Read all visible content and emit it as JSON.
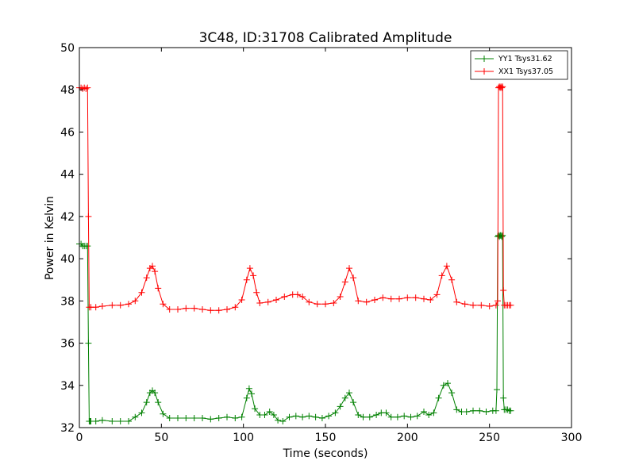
{
  "chart_data": {
    "type": "line",
    "title": "3C48, ID:31708 Calibrated Amplitude",
    "xlabel": "Time (seconds)",
    "ylabel": "Power in Kelvin",
    "xlim": [
      0,
      300
    ],
    "ylim": [
      32,
      50
    ],
    "xticks": [
      0,
      50,
      100,
      150,
      200,
      250,
      300
    ],
    "yticks": [
      32,
      34,
      36,
      38,
      40,
      42,
      44,
      46,
      48,
      50
    ],
    "xtick_labels": [
      "0",
      "50",
      "100",
      "150",
      "200",
      "250",
      "300"
    ],
    "ytick_labels": [
      "32",
      "34",
      "36",
      "38",
      "40",
      "42",
      "44",
      "46",
      "48",
      "50"
    ],
    "grid": false,
    "legend_position": "top-right",
    "marker": "+",
    "series": [
      {
        "name": "YY1 Tsys31.62",
        "color": "#008000",
        "x": [
          0,
          1,
          2,
          3,
          4,
          5,
          5.5,
          6,
          6.5,
          7,
          10,
          14,
          20,
          25,
          30,
          34,
          38,
          41,
          43,
          44.5,
          46,
          48,
          51,
          55,
          60,
          65,
          70,
          75,
          80,
          85,
          90,
          95,
          99,
          102,
          103.5,
          105,
          107,
          110,
          113,
          116,
          118.5,
          121,
          124,
          128,
          132,
          136,
          140,
          144,
          148,
          152,
          156,
          159,
          162,
          164.5,
          167,
          170,
          173,
          177,
          181,
          184,
          187,
          190,
          194,
          198,
          202,
          206,
          210,
          213,
          216,
          219,
          222,
          224.5,
          227,
          230,
          233,
          236,
          240,
          244,
          248,
          252,
          254,
          254.5,
          255,
          255.5,
          256,
          256.5,
          257,
          257.5,
          258,
          258.5,
          259,
          260,
          261,
          262,
          263
        ],
        "y": [
          40.7,
          40.7,
          40.6,
          40.6,
          40.6,
          40.6,
          36.0,
          32.3,
          32.3,
          32.3,
          32.3,
          32.35,
          32.3,
          32.3,
          32.3,
          32.5,
          32.7,
          33.2,
          33.65,
          33.75,
          33.65,
          33.2,
          32.65,
          32.45,
          32.45,
          32.45,
          32.45,
          32.45,
          32.4,
          32.45,
          32.5,
          32.45,
          32.5,
          33.4,
          33.85,
          33.6,
          32.9,
          32.6,
          32.6,
          32.75,
          32.6,
          32.35,
          32.3,
          32.5,
          32.55,
          32.5,
          32.55,
          32.5,
          32.45,
          32.55,
          32.7,
          33.0,
          33.4,
          33.65,
          33.2,
          32.6,
          32.5,
          32.5,
          32.6,
          32.7,
          32.7,
          32.5,
          32.5,
          32.55,
          32.5,
          32.55,
          32.75,
          32.6,
          32.7,
          33.4,
          34.0,
          34.1,
          33.65,
          32.85,
          32.75,
          32.75,
          32.8,
          32.8,
          32.75,
          32.8,
          32.8,
          33.8,
          41.05,
          41.1,
          41.05,
          41.1,
          41.1,
          41.05,
          41.1,
          33.4,
          32.85,
          32.85,
          32.85,
          32.8,
          32.8
        ],
        "values": [
          40.7,
          40.7,
          40.6,
          40.6,
          40.6,
          40.6,
          36.0,
          32.3,
          32.3,
          32.3,
          32.3,
          32.35,
          32.3,
          32.3,
          32.3,
          32.5,
          32.7,
          33.2,
          33.65,
          33.75,
          33.65,
          33.2,
          32.65,
          32.45,
          32.45,
          32.45,
          32.45,
          32.45,
          32.4,
          32.45,
          32.5,
          32.45,
          32.5,
          33.4,
          33.85,
          33.6,
          32.9,
          32.6,
          32.6,
          32.75,
          32.6,
          32.35,
          32.3,
          32.5,
          32.55,
          32.5,
          32.55,
          32.5,
          32.45,
          32.55,
          32.7,
          33.0,
          33.4,
          33.65,
          33.2,
          32.6,
          32.5,
          32.5,
          32.6,
          32.7,
          32.7,
          32.5,
          32.5,
          32.55,
          32.5,
          32.55,
          32.75,
          32.6,
          32.7,
          33.4,
          34.0,
          34.1,
          33.65,
          32.85,
          32.75,
          32.75,
          32.8,
          32.8,
          32.75,
          32.8,
          32.8,
          33.8,
          41.05,
          41.1,
          41.05,
          41.1,
          41.1,
          41.05,
          41.1,
          33.4,
          32.85,
          32.85,
          32.85,
          32.8,
          32.8
        ]
      },
      {
        "name": "XX1 Tsys37.05",
        "color": "#ff0000",
        "x": [
          0,
          1,
          2,
          3,
          4,
          5,
          5.5,
          6,
          7,
          10,
          14,
          20,
          25,
          30,
          34,
          38,
          41,
          43,
          44.5,
          46,
          48,
          51,
          55,
          60,
          65,
          70,
          75,
          80,
          85,
          90,
          95,
          99,
          102,
          104,
          106,
          108,
          110,
          115,
          120,
          125,
          130,
          133,
          136,
          140,
          145,
          150,
          155,
          159,
          162,
          164.5,
          167,
          170,
          175,
          180,
          185,
          190,
          195,
          200,
          205,
          210,
          214,
          218,
          221,
          224,
          227,
          230,
          235,
          240,
          245,
          250,
          254,
          255,
          255.5,
          256,
          256.5,
          257,
          257.5,
          258,
          258.5,
          259,
          260,
          261,
          262,
          263
        ],
        "y": [
          48.1,
          48.1,
          48.05,
          48.1,
          48.05,
          48.1,
          42.0,
          37.7,
          37.7,
          37.7,
          37.75,
          37.8,
          37.8,
          37.85,
          38.0,
          38.4,
          39.1,
          39.55,
          39.65,
          39.4,
          38.6,
          37.85,
          37.6,
          37.6,
          37.65,
          37.65,
          37.6,
          37.55,
          37.55,
          37.6,
          37.7,
          38.05,
          39.0,
          39.55,
          39.2,
          38.4,
          37.9,
          37.95,
          38.05,
          38.2,
          38.3,
          38.3,
          38.2,
          37.95,
          37.85,
          37.85,
          37.9,
          38.2,
          38.9,
          39.55,
          39.1,
          38.0,
          37.95,
          38.05,
          38.15,
          38.1,
          38.1,
          38.15,
          38.15,
          38.1,
          38.05,
          38.3,
          39.2,
          39.65,
          39.0,
          37.95,
          37.85,
          37.8,
          37.8,
          37.75,
          37.8,
          38.0,
          48.1,
          48.15,
          48.1,
          48.15,
          48.1,
          48.15,
          38.5,
          37.8,
          37.8,
          37.8,
          37.8,
          37.8
        ],
        "values": [
          48.1,
          48.1,
          48.05,
          48.1,
          48.05,
          48.1,
          42.0,
          37.7,
          37.7,
          37.7,
          37.75,
          37.8,
          37.8,
          37.85,
          38.0,
          38.4,
          39.1,
          39.55,
          39.65,
          39.4,
          38.6,
          37.85,
          37.6,
          37.6,
          37.65,
          37.65,
          37.6,
          37.55,
          37.55,
          37.6,
          37.7,
          38.05,
          39.0,
          39.55,
          39.2,
          38.4,
          37.9,
          37.95,
          38.05,
          38.2,
          38.3,
          38.3,
          38.2,
          37.95,
          37.85,
          37.85,
          37.9,
          38.2,
          38.9,
          39.55,
          39.1,
          38.0,
          37.95,
          38.05,
          38.15,
          38.1,
          38.1,
          38.15,
          38.15,
          38.1,
          38.05,
          38.3,
          39.2,
          39.65,
          39.0,
          37.95,
          37.85,
          37.8,
          37.8,
          37.75,
          37.8,
          38.0,
          48.1,
          48.15,
          48.1,
          48.15,
          48.1,
          48.15,
          38.5,
          37.8,
          37.8,
          37.8,
          37.8,
          37.8
        ]
      }
    ]
  }
}
